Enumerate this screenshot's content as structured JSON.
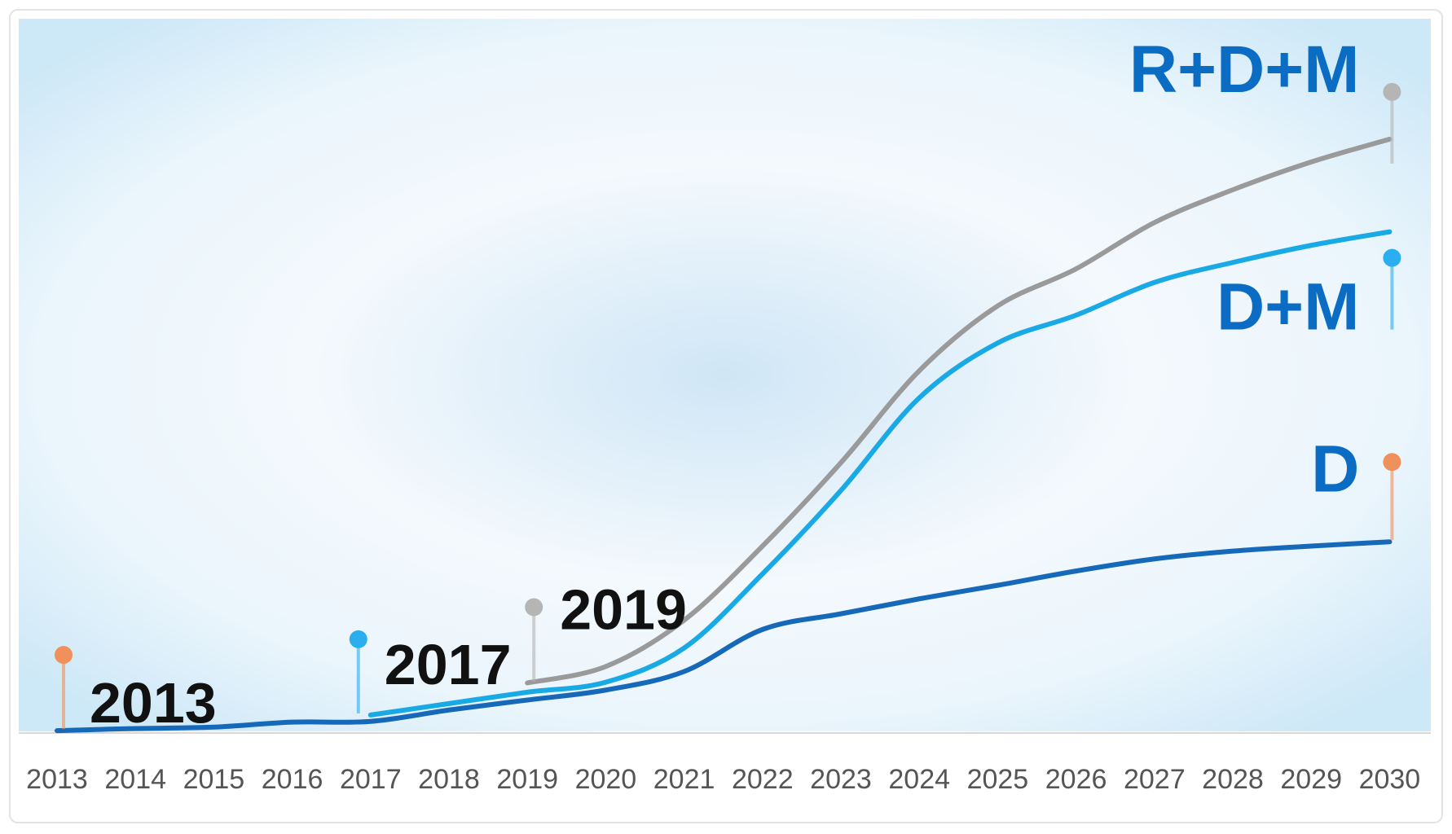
{
  "chart_data": {
    "type": "line",
    "categories": [
      "2013",
      "2014",
      "2015",
      "2016",
      "2017",
      "2018",
      "2019",
      "2020",
      "2021",
      "2022",
      "2023",
      "2024",
      "2025",
      "2026",
      "2027",
      "2028",
      "2029",
      "2030"
    ],
    "series": [
      {
        "name": "D",
        "color": "#1668b9",
        "pin_color": "#f0905a",
        "annotation": "2013",
        "values": [
          0.1,
          0.4,
          0.6,
          1.3,
          1.4,
          3.0,
          4.4,
          5.8,
          8.4,
          14.3,
          16.5,
          18.6,
          20.5,
          22.5,
          24.2,
          25.3,
          26.0,
          26.6
        ]
      },
      {
        "name": "D+M",
        "color": "#19a9e5",
        "pin_color": "#2aaef0",
        "annotation": "2017",
        "values": [
          null,
          null,
          null,
          null,
          2.3,
          3.9,
          5.5,
          6.9,
          11.7,
          22.1,
          33.8,
          46.8,
          54.5,
          58.4,
          63.0,
          65.8,
          68.2,
          70.1
        ]
      },
      {
        "name": "R+D+M",
        "color": "#9a9a9a",
        "pin_color": "#b5b5b5",
        "annotation": "2019",
        "values": [
          null,
          null,
          null,
          null,
          null,
          null,
          6.8,
          9.1,
          15.6,
          26.0,
          37.7,
          50.6,
          59.7,
          64.9,
          71.4,
          76.0,
          79.9,
          83.1
        ]
      }
    ],
    "label_color": "#0b6cc4",
    "ylim": [
      0,
      100
    ]
  }
}
